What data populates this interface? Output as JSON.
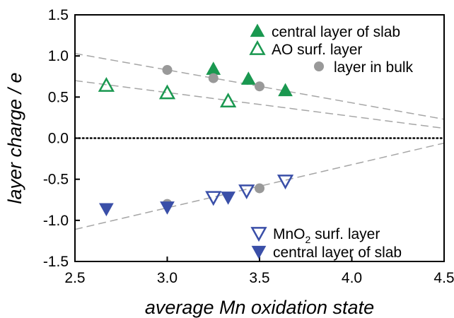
{
  "chart_data": {
    "type": "scatter",
    "xlabel": "average Mn oxidation state",
    "ylabel": "layer charge / e",
    "xlim": [
      2.5,
      4.5
    ],
    "ylim": [
      -1.5,
      1.5
    ],
    "xticks": [
      "2.5",
      "3.0",
      "3.5",
      "4.0",
      "4.5"
    ],
    "yticks": [
      "1.5",
      "1.0",
      "0.5",
      "0.0",
      "-0.5",
      "-1.0",
      "-1.5"
    ],
    "grid": false,
    "zero_line": {
      "y": 0,
      "style": "dotted"
    },
    "colors": {
      "green": "#1a9850",
      "blue": "#3a4fa8",
      "gray": "#999999",
      "trend": "#a6a6a6"
    },
    "legend_top": {
      "items": [
        {
          "label": "central layer of slab",
          "marker": "triangle-up-filled",
          "color": "#1a9850"
        },
        {
          "label": "AO surf. layer",
          "marker": "triangle-up-open",
          "color": "#1a9850"
        },
        {
          "label": "layer  in bulk",
          "marker": "circle-filled",
          "color": "#999999"
        }
      ]
    },
    "legend_bottom": {
      "items": [
        {
          "label": "MnO",
          "subscript": "2",
          "label_suffix": " surf. layer",
          "marker": "triangle-down-open",
          "color": "#3a4fa8"
        },
        {
          "label": "central layer of slab",
          "marker": "triangle-down-filled",
          "color": "#3a4fa8"
        }
      ]
    },
    "series": [
      {
        "name": "central layer of slab",
        "marker": "triangle-up-filled",
        "color": "#1a9850",
        "x": [
          3.25,
          3.44,
          3.64
        ],
        "y": [
          0.84,
          0.72,
          0.58
        ]
      },
      {
        "name": "AO surf. layer",
        "marker": "triangle-up-open",
        "color": "#1a9850",
        "x": [
          2.67,
          3.0,
          3.33
        ],
        "y": [
          0.64,
          0.55,
          0.45
        ]
      },
      {
        "name": "layer  in bulk",
        "marker": "circle-filled",
        "color": "#999999",
        "x": [
          3.0,
          3.25,
          3.5,
          3.5,
          3.0
        ],
        "y": [
          0.83,
          0.73,
          0.63,
          -0.61,
          -0.8
        ]
      },
      {
        "name": "MnO2 surf. layer",
        "marker": "triangle-down-open",
        "color": "#3a4fa8",
        "x": [
          3.25,
          3.43,
          3.64
        ],
        "y": [
          -0.72,
          -0.64,
          -0.52
        ]
      },
      {
        "name": "central layer of slab",
        "marker": "triangle-down-filled",
        "color": "#3a4fa8",
        "x": [
          2.67,
          3.0,
          3.33
        ],
        "y": [
          -0.86,
          -0.84,
          -0.72
        ]
      }
    ],
    "trend_lines": [
      {
        "x": [
          2.5,
          4.5
        ],
        "y": [
          1.03,
          0.23
        ]
      },
      {
        "x": [
          2.5,
          4.5
        ],
        "y": [
          0.7,
          0.12
        ]
      },
      {
        "x": [
          2.5,
          4.5
        ],
        "y": [
          -1.11,
          -0.06
        ]
      }
    ]
  }
}
